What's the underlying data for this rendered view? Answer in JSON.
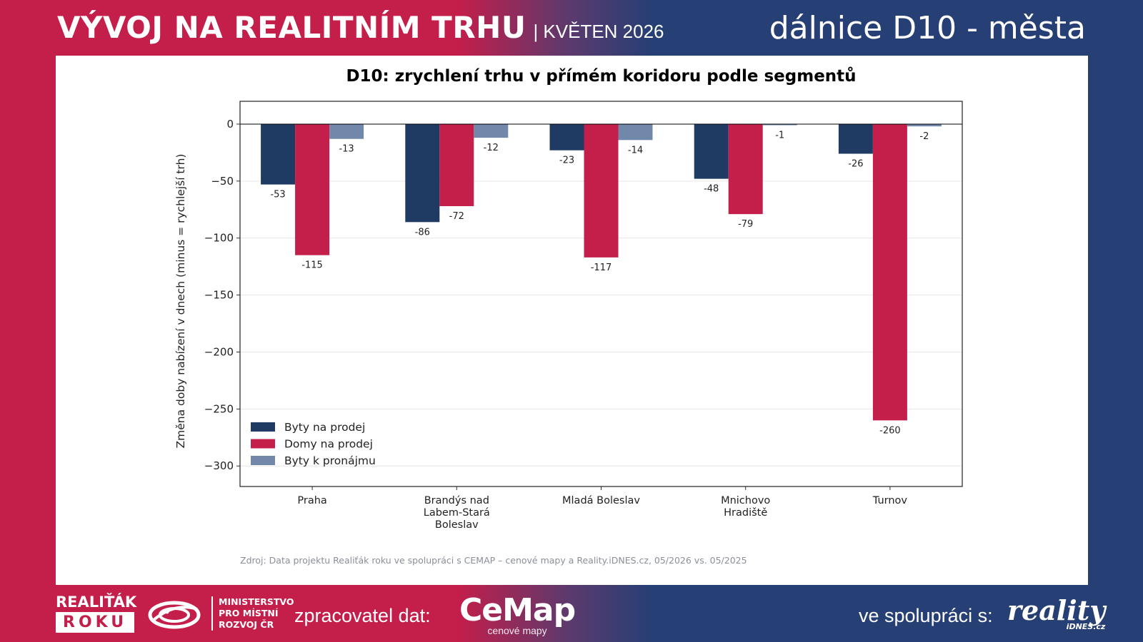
{
  "header": {
    "title": "VÝVOJ NA REALITNÍM TRHU",
    "subtitle": "| KVĚTEN 2026",
    "right_title": "dálnice D10 - města"
  },
  "colors": {
    "byty_prodej": "#1f3a63",
    "domy_prodej": "#c41e4a",
    "byty_pronajem": "#7188aa",
    "brand_red": "#c41e4a",
    "brand_blue": "#263f75"
  },
  "chart_data": {
    "type": "bar",
    "title": "D10: zrychlení trhu v přímém koridoru podle segmentů",
    "ylabel": "Změna doby nabízení v dnech (minus = rychlejší trh)",
    "xlabel": "",
    "ylim": [
      -318,
      20
    ],
    "yticks": [
      0,
      -50,
      -100,
      -150,
      -200,
      -250,
      -300
    ],
    "ytick_labels": [
      "0",
      "−50",
      "−100",
      "−150",
      "−200",
      "−250",
      "−300"
    ],
    "categories": [
      [
        "Praha"
      ],
      [
        "Brandýs nad",
        "Labem-Stará",
        "Boleslav"
      ],
      [
        "Mladá Boleslav"
      ],
      [
        "Mnichovo",
        "Hradiště"
      ],
      [
        "Turnov"
      ]
    ],
    "series": [
      {
        "name": "Byty na prodej",
        "values": [
          -53,
          -86,
          -23,
          -48,
          -26
        ],
        "labels": [
          "-53",
          "-86",
          "-23",
          "-48",
          "-26"
        ]
      },
      {
        "name": "Domy na prodej",
        "values": [
          -115,
          -72,
          -117,
          -79,
          -260
        ],
        "labels": [
          "-115",
          "-72",
          "-117",
          "-79",
          "-260"
        ]
      },
      {
        "name": "Byty k pronájmu",
        "values": [
          -13,
          -12,
          -14,
          -1,
          -2
        ],
        "labels": [
          "-13",
          "-12",
          "-14",
          "-1",
          "-2"
        ]
      }
    ],
    "legend": "lower-left",
    "grid": true
  },
  "source": "Zdroj: Data projektu Realiťák roku ve spolupráci s CEMAP – cenové mapy a Reality.iDNES.cz, 05/2026 vs. 05/2025",
  "footer": {
    "realitak_line1": "REALIŤÁK",
    "realitak_line2": "ROKU",
    "mmr_line1": "MINISTERSTVO",
    "mmr_line2": "PRO MÍSTNÍ",
    "mmr_line3": "ROZVOJ ČR",
    "zpracovatel": "zpracovatel dat:",
    "cemap_big": "CeMap",
    "cemap_small": "cenové mapy",
    "spoluprace": "ve spolupráci s:",
    "reality_big": "reality",
    "reality_small": "iDNES.cz"
  }
}
